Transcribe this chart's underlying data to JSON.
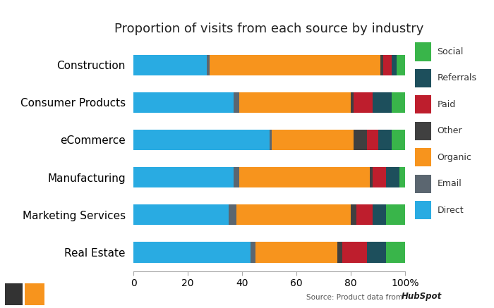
{
  "title": "Proportion of visits from each source by industry",
  "industries": [
    "Construction",
    "Consumer Products",
    "eCommerce",
    "Manufacturing",
    "Marketing Services",
    "Real Estate"
  ],
  "sources": [
    "Direct",
    "Email",
    "Organic",
    "Other",
    "Paid",
    "Referrals",
    "Social"
  ],
  "colors": {
    "Direct": "#29ABE2",
    "Email": "#5B6670",
    "Organic": "#F7941D",
    "Other": "#404040",
    "Paid": "#BE1E2D",
    "Referrals": "#1D4F5C",
    "Social": "#39B54A"
  },
  "data": {
    "Construction": {
      "Direct": 27,
      "Email": 1,
      "Organic": 63,
      "Other": 1,
      "Paid": 3,
      "Referrals": 2,
      "Social": 3
    },
    "Consumer Products": {
      "Direct": 37,
      "Email": 2,
      "Organic": 41,
      "Other": 1,
      "Paid": 7,
      "Referrals": 7,
      "Social": 5
    },
    "eCommerce": {
      "Direct": 50,
      "Email": 1,
      "Organic": 30,
      "Other": 5,
      "Paid": 4,
      "Referrals": 5,
      "Social": 5
    },
    "Manufacturing": {
      "Direct": 37,
      "Email": 2,
      "Organic": 48,
      "Other": 1,
      "Paid": 5,
      "Referrals": 5,
      "Social": 2
    },
    "Marketing Services": {
      "Direct": 35,
      "Email": 3,
      "Organic": 42,
      "Other": 2,
      "Paid": 6,
      "Referrals": 5,
      "Social": 7
    },
    "Real Estate": {
      "Direct": 43,
      "Email": 2,
      "Organic": 30,
      "Other": 2,
      "Paid": 9,
      "Referrals": 7,
      "Social": 7
    }
  },
  "xlim": [
    0,
    100
  ],
  "xticks": [
    0,
    20,
    40,
    60,
    80,
    100
  ],
  "xticklabels": [
    "0",
    "20",
    "40",
    "60",
    "80",
    "100%"
  ],
  "background_color": "#ffffff",
  "title_fontsize": 13,
  "tick_fontsize": 10,
  "legend_fontsize": 9,
  "source_text": "Source: Product data from ",
  "hubspot_text": "HubSpot",
  "bar_height": 0.55
}
